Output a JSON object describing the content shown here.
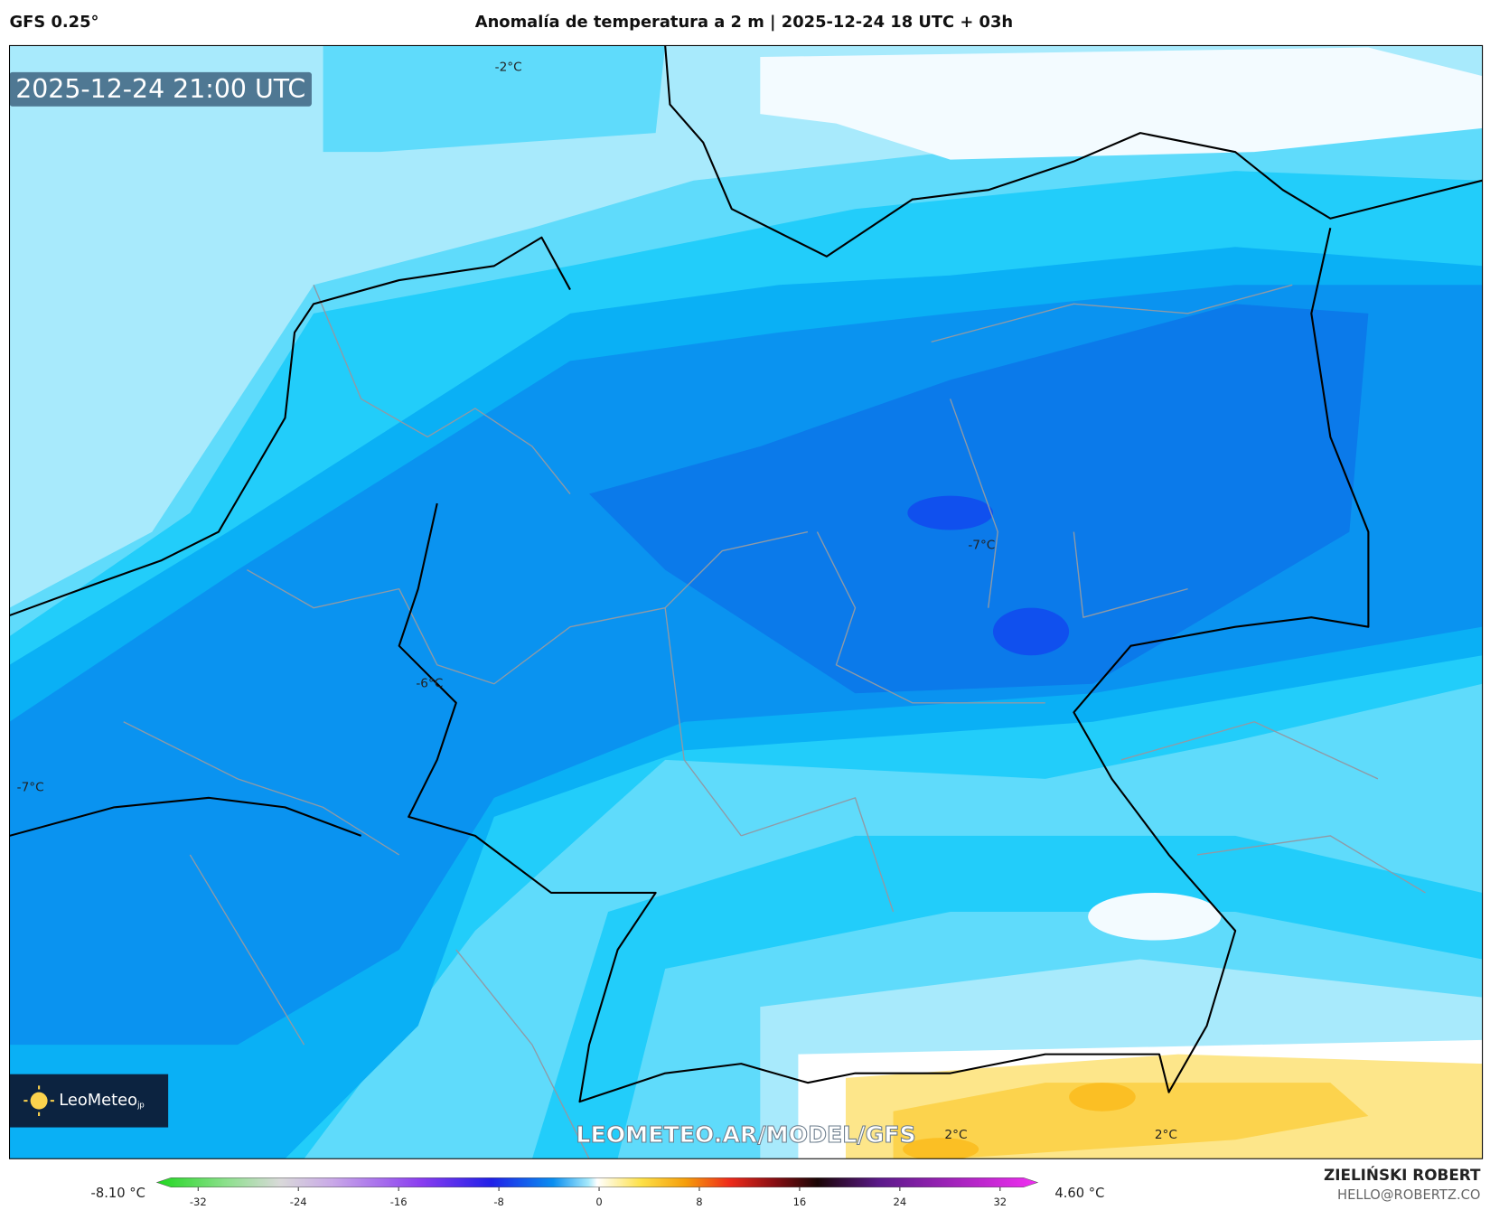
{
  "header": {
    "model": "GFS 0.25°",
    "title": "Anomalía de temperatura a 2 m | 2025-12-24 18 UTC + 03h"
  },
  "map": {
    "valid_time": "2025-12-24 21:00 UTC",
    "contour_labels": [
      "-2°C",
      "-7°C",
      "-6°C",
      "-7°C",
      "2°C",
      "2°C"
    ],
    "watermark": "LEOMETEO.AR/MODEL/GFS"
  },
  "logo": {
    "name": "LeoMeteo",
    "suffix": "jp"
  },
  "colorbar": {
    "min_label": "-8.10 °C",
    "max_label": "4.60 °C",
    "range": [
      -35.3,
      35
    ],
    "ticks": [
      -32,
      -24,
      -16,
      -8,
      0,
      8,
      16,
      24,
      32
    ]
  },
  "footer": {
    "author": "ZIELIŃSKI ROBERT",
    "email": "HELLO@ROBERTZ.CO"
  }
}
